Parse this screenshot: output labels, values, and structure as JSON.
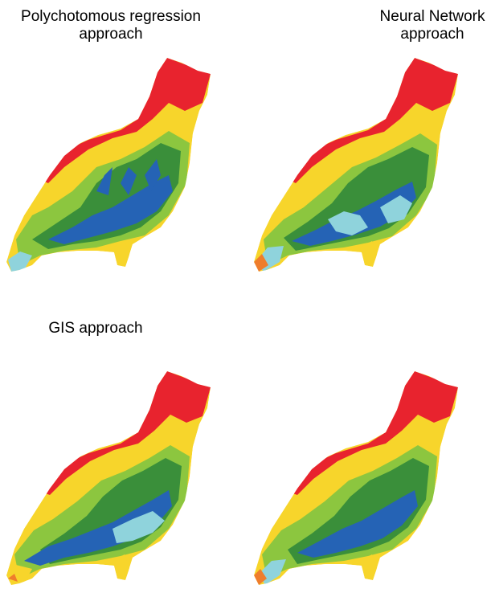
{
  "panels": [
    {
      "title": "Polychotomous regression\napproach"
    },
    {
      "title": "Neural Network approach"
    },
    {
      "title": "GIS approach"
    },
    {
      "title": ""
    }
  ],
  "map_colors": {
    "red": "#e8232e",
    "yellow": "#f7d52b",
    "light_green": "#8cc63f",
    "dark_green": "#3a8f3a",
    "blue": "#2563b5",
    "light_blue": "#8fd3dc",
    "orange": "#ef7d2c"
  }
}
